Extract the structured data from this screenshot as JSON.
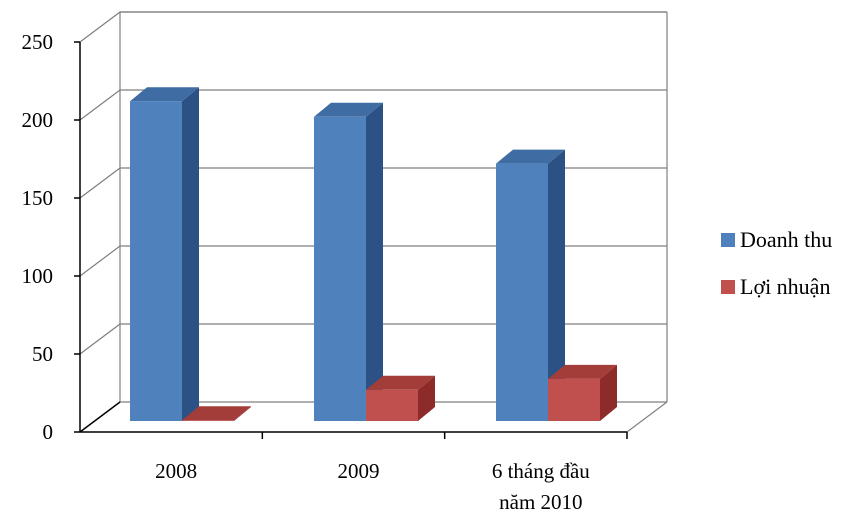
{
  "chart_data": {
    "type": "bar",
    "style": "3d-clustered-column",
    "categories": [
      "2008",
      "2009",
      "6 tháng đầu năm 2010"
    ],
    "category_lines": [
      [
        "2008"
      ],
      [
        "2009"
      ],
      [
        "6 tháng đầu",
        "năm 2010"
      ]
    ],
    "series": [
      {
        "name": "Doanh thu",
        "values": [
          205,
          195,
          165
        ]
      },
      {
        "name": "Lợi nhuận",
        "values": [
          0.5,
          20,
          27
        ]
      }
    ],
    "yticks": [
      0,
      50,
      100,
      150,
      200,
      250
    ],
    "ylim": [
      0,
      250
    ],
    "grid": true,
    "legend_position": "right",
    "colors": {
      "Doanh thu": {
        "front": "#4f81bd",
        "side": "#2b5185",
        "top": "#3f6da3"
      },
      "Lợi nhuận": {
        "front": "#c0504d",
        "side": "#8c2b29",
        "top": "#a33d3a"
      }
    }
  }
}
